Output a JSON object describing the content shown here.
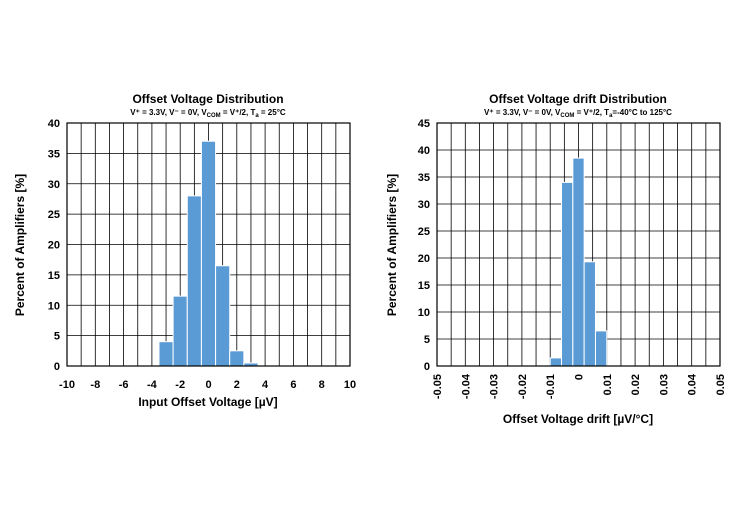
{
  "colors": {
    "bar": "#5b9bd5",
    "grid": "#000000"
  },
  "chart_data": [
    {
      "type": "bar",
      "title": "Offset Voltage Distribution",
      "subtitle": {
        "line": "V⁺ = 3.3V, V⁻ = 0V, V",
        "com_sub": "COM",
        "mid": " = V⁺/2, T",
        "ta_sub": "a",
        "tail": " = 25°C"
      },
      "xlabel": "Input Offset Voltage [µV]",
      "ylabel": "Percent of Amplifiers [%]",
      "xlim": [
        -10,
        10
      ],
      "ylim": [
        0,
        40
      ],
      "x_grid_step": 1,
      "xticks": [
        -10,
        -8,
        -6,
        -4,
        -2,
        0,
        2,
        4,
        6,
        8,
        10
      ],
      "xtick_labels": [
        "-10",
        "-8",
        "-6",
        "-4",
        "-2",
        "0",
        "2",
        "4",
        "6",
        "8",
        "10"
      ],
      "yticks": [
        0,
        5,
        10,
        15,
        20,
        25,
        30,
        35,
        40
      ],
      "ytick_labels": [
        "0",
        "5",
        "10",
        "15",
        "20",
        "25",
        "30",
        "35",
        "40"
      ],
      "bins": [
        {
          "x0": -3.5,
          "x1": -2.5,
          "value": 4
        },
        {
          "x0": -2.5,
          "x1": -1.5,
          "value": 11.5
        },
        {
          "x0": -1.5,
          "x1": -0.5,
          "value": 28
        },
        {
          "x0": -0.5,
          "x1": 0.5,
          "value": 37
        },
        {
          "x0": 0.5,
          "x1": 1.5,
          "value": 16.5
        },
        {
          "x0": 1.5,
          "x1": 2.5,
          "value": 2.5
        },
        {
          "x0": 2.5,
          "x1": 3.5,
          "value": 0.5
        }
      ]
    },
    {
      "type": "bar",
      "title": "Offset Voltage drift Distribution",
      "subtitle": {
        "line": "V⁺ = 3.3V, V⁻ = 0V, V",
        "com_sub": "COM",
        "mid": " = V⁺/2, T",
        "ta_sub": "a",
        "tail": "=-40°C to 125°C"
      },
      "xlabel": "Offset Voltage drift [µV/°C]",
      "ylabel": "Percent of Amplifiers [%]",
      "xlim": [
        -0.05,
        0.05
      ],
      "ylim": [
        0,
        45
      ],
      "x_grid_step": 0.005,
      "xticks": [
        -0.05,
        -0.04,
        -0.03,
        -0.02,
        -0.01,
        0,
        0.01,
        0.02,
        0.03,
        0.04,
        0.05
      ],
      "xtick_labels": [
        "-0.05",
        "-0.04",
        "-0.03",
        "-0.02",
        "-0.01",
        "0",
        "0.01",
        "0.02",
        "0.03",
        "0.04",
        "0.05"
      ],
      "yticks": [
        0,
        5,
        10,
        15,
        20,
        25,
        30,
        35,
        40,
        45
      ],
      "ytick_labels": [
        "0",
        "5",
        "10",
        "15",
        "20",
        "25",
        "30",
        "35",
        "40",
        "45"
      ],
      "bins": [
        {
          "x0": -0.01,
          "x1": -0.006,
          "value": 1.5
        },
        {
          "x0": -0.006,
          "x1": -0.002,
          "value": 34
        },
        {
          "x0": -0.002,
          "x1": 0.002,
          "value": 38.5
        },
        {
          "x0": 0.002,
          "x1": 0.006,
          "value": 19.3
        },
        {
          "x0": 0.006,
          "x1": 0.01,
          "value": 6.5
        }
      ]
    }
  ]
}
